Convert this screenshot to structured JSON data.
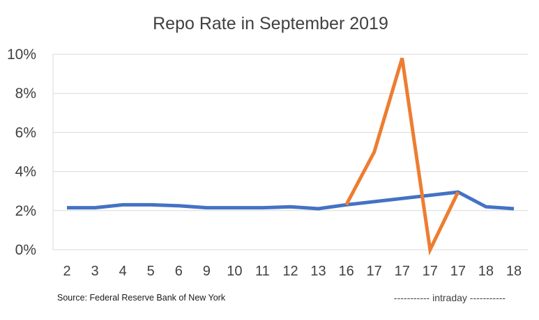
{
  "chart_data": {
    "type": "line",
    "title": "Repo Rate in September 2019",
    "xlabel": "",
    "ylabel": "",
    "categories": [
      "2",
      "3",
      "4",
      "5",
      "6",
      "9",
      "10",
      "11",
      "12",
      "13",
      "16",
      "17",
      "17",
      "17",
      "17",
      "18",
      "18"
    ],
    "series": [
      {
        "color": "#4472C4",
        "values": [
          2.15,
          2.15,
          2.3,
          2.3,
          2.25,
          2.15,
          2.15,
          2.15,
          2.2,
          2.1,
          2.3,
          null,
          null,
          null,
          2.95,
          2.2,
          2.1
        ]
      },
      {
        "color": "#ED7D31",
        "values": [
          null,
          null,
          null,
          null,
          null,
          null,
          null,
          null,
          null,
          null,
          2.3,
          5.0,
          9.8,
          0.0,
          2.95,
          null,
          null
        ]
      }
    ],
    "ylim": [
      0,
      10
    ],
    "yticks": [
      0,
      2,
      4,
      6,
      8,
      10
    ],
    "ytick_labels": [
      "0%",
      "2%",
      "4%",
      "6%",
      "8%",
      "10%"
    ],
    "grid": true,
    "source_note": "Source: Federal Reserve Bank of New York",
    "intraday_note": "----------- intraday -----------"
  }
}
